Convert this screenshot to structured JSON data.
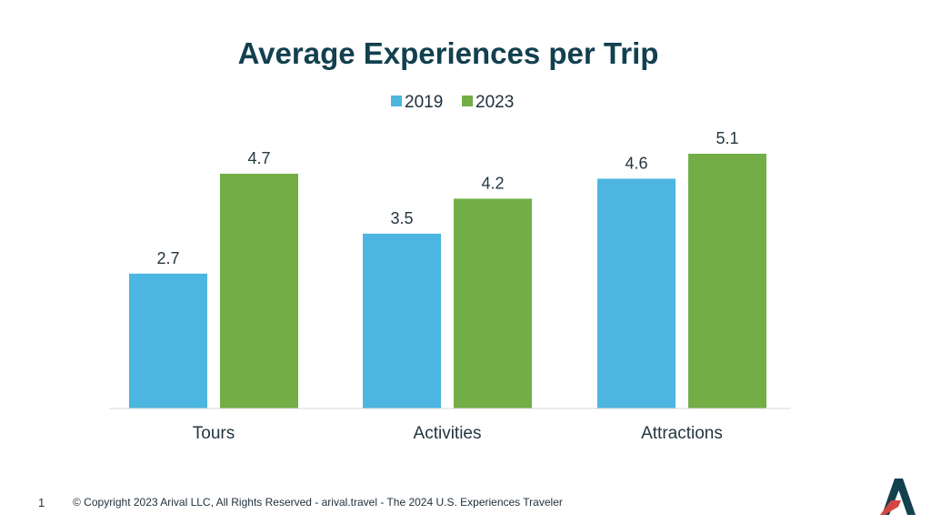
{
  "chart_data": {
    "type": "bar",
    "title": "Average Experiences per Trip",
    "categories": [
      "Tours",
      "Activities",
      "Attractions"
    ],
    "series": [
      {
        "name": "2019",
        "color": "#4cb6e0",
        "values": [
          2.7,
          3.5,
          4.6
        ],
        "labels": [
          "2.7",
          "3.5",
          "4.6"
        ]
      },
      {
        "name": "2023",
        "color": "#73ad46",
        "values": [
          4.7,
          4.2,
          5.1
        ],
        "labels": [
          "4.7",
          "4.2",
          "5.1"
        ]
      }
    ],
    "xlabel": "",
    "ylabel": "",
    "ylim": [
      0,
      5.1
    ],
    "grid": false,
    "legend_position": "top-center",
    "axis_line_color": "#d9d9d9"
  },
  "footer": {
    "page_number": "1",
    "copyright": "© Copyright 2023 Arival LLC, All Rights Reserved - arival.travel - The 2024 U.S. Experiences Traveler"
  },
  "brand": {
    "logo_icon": "arival-logo-icon",
    "colors": {
      "navy": "#12404f",
      "red": "#d64541"
    }
  }
}
